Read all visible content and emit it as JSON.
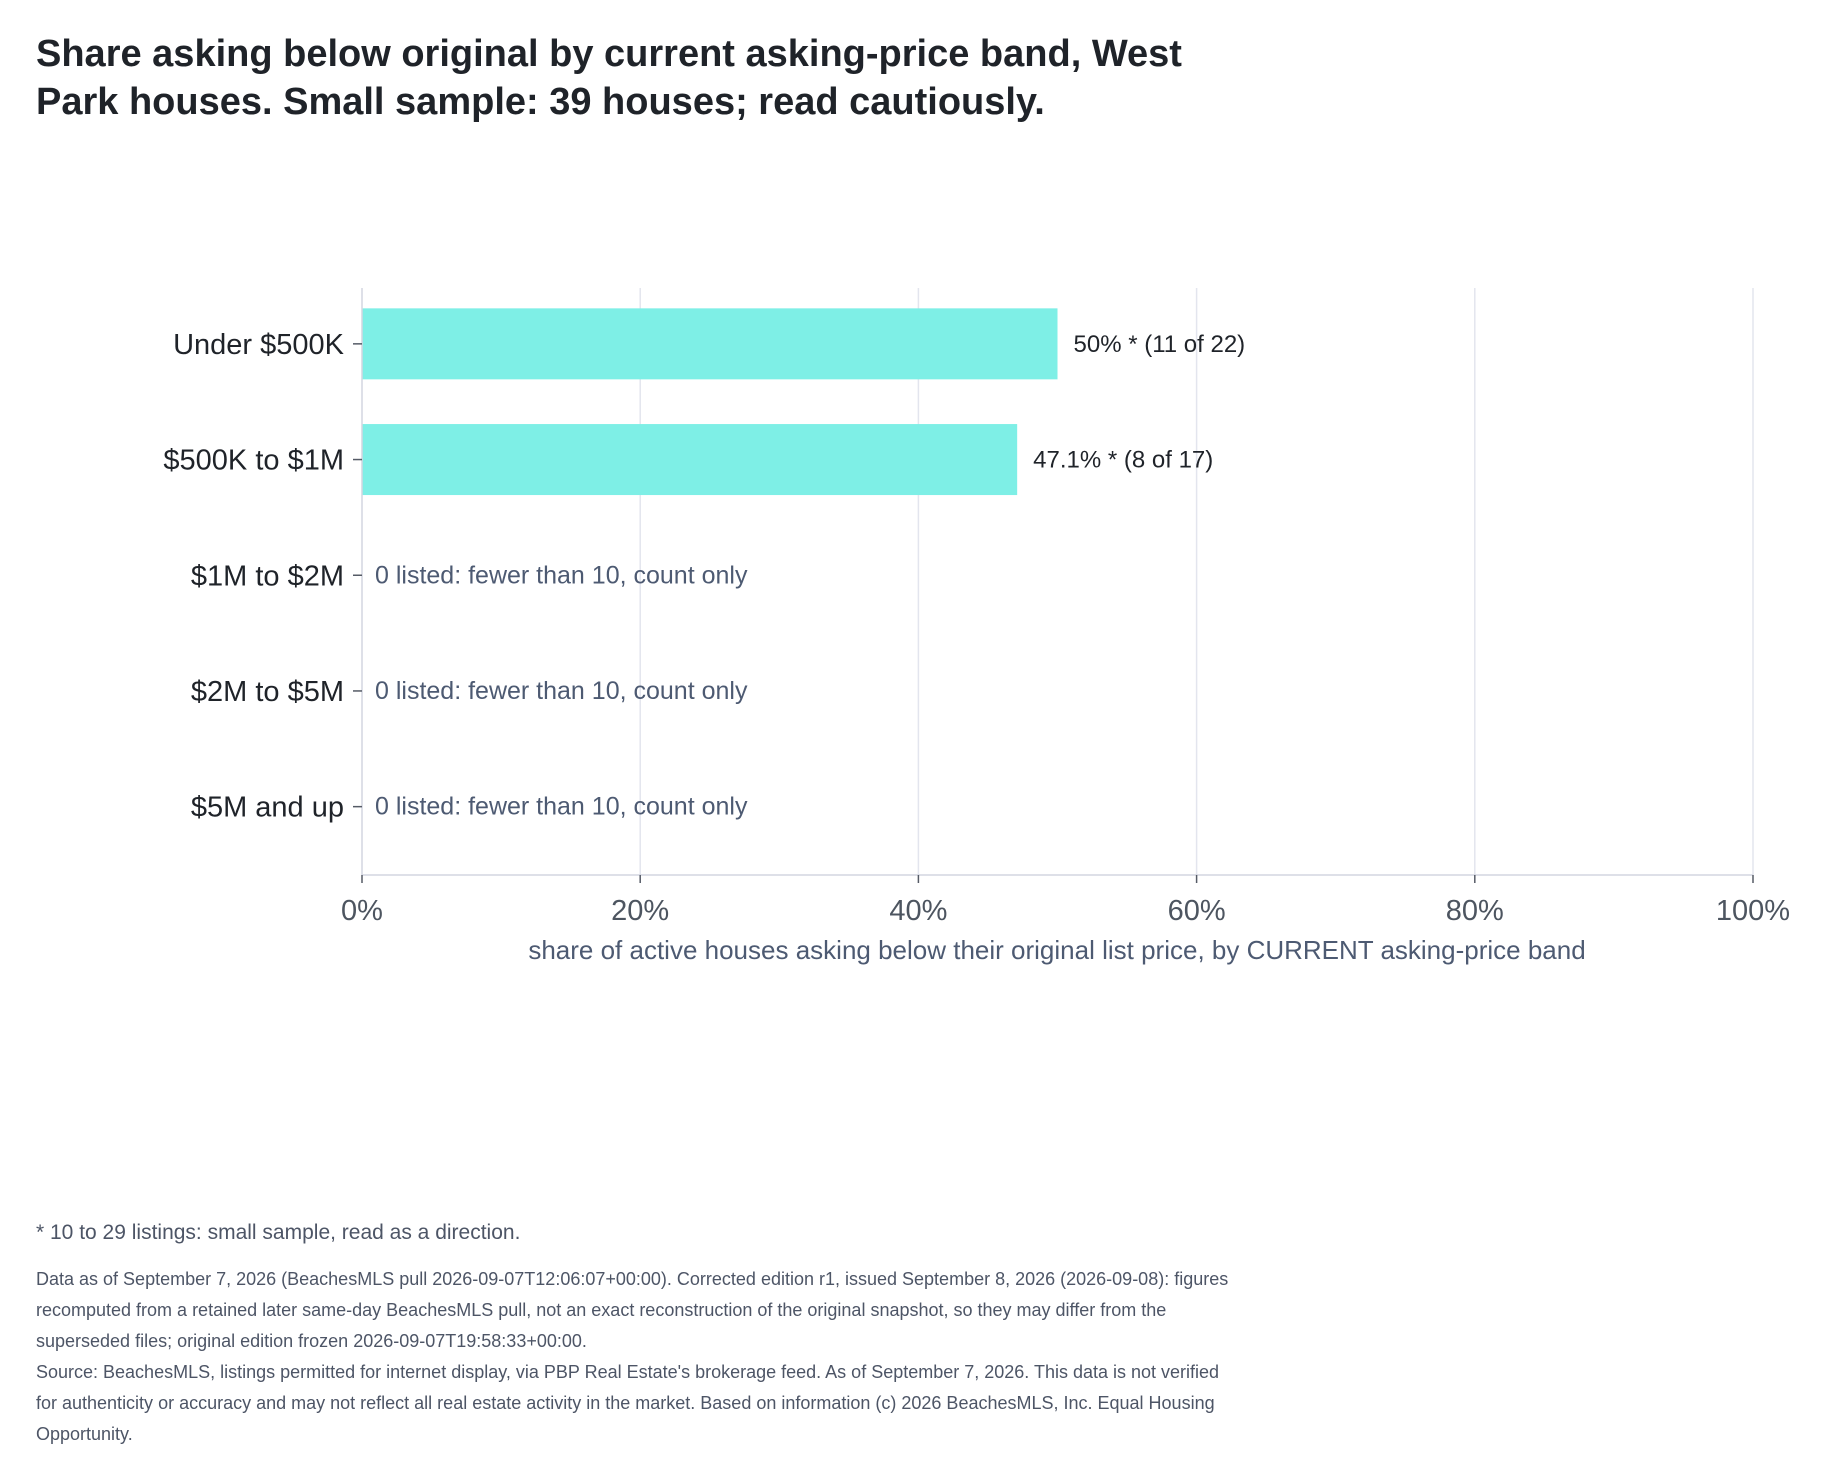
{
  "title_lines": [
    "Share asking below original by current asking-price band, West",
    "Park houses. Small sample: 39 houses; read cautiously."
  ],
  "colors": {
    "bar": "#7eefe6",
    "grid": "#e3e5ee",
    "axis": "#d3d6e0",
    "category_text": "#1f2329",
    "muted_text": "#4d5a72"
  },
  "chart_data": {
    "type": "bar",
    "orientation": "horizontal",
    "categories": [
      "Under $500K",
      "$500K to $1M",
      "$1M to $2M",
      "$2M to $5M",
      "$5M and up"
    ],
    "values": [
      50,
      47.1,
      null,
      null,
      null
    ],
    "data_labels": [
      "50% *  (11 of 22)",
      "47.1% *  (8 of 17)",
      "0 listed: fewer than 10, count only",
      "0 listed: fewer than 10, count only",
      "0 listed: fewer than 10, count only"
    ],
    "xlabel": "share of active houses asking below their original list price, by CURRENT asking-price band",
    "xlim": [
      0,
      100
    ],
    "xticks": [
      0,
      20,
      40,
      60,
      80,
      100
    ],
    "xtick_labels": [
      "0%",
      "20%",
      "40%",
      "60%",
      "80%",
      "100%"
    ],
    "grid": true,
    "legend": "none"
  },
  "notes": {
    "footnote": "* 10 to 29 listings: small sample, read as a direction.",
    "fine_print_lines": [
      "Data as of September 7, 2026 (BeachesMLS pull 2026-09-07T12:06:07+00:00). Corrected edition r1, issued September 8, 2026 (2026-09-08): figures",
      "recomputed from a retained later same-day BeachesMLS pull, not an exact reconstruction of the original snapshot, so they may differ from the",
      "superseded files; original edition frozen 2026-09-07T19:58:33+00:00.",
      "Source: BeachesMLS, listings permitted for internet display, via PBP Real Estate's brokerage feed. As of September 7, 2026. This data is not verified",
      "for authenticity or accuracy and may not reflect all real estate activity in the market. Based on information (c) 2026 BeachesMLS, Inc. Equal Housing",
      "Opportunity."
    ]
  }
}
